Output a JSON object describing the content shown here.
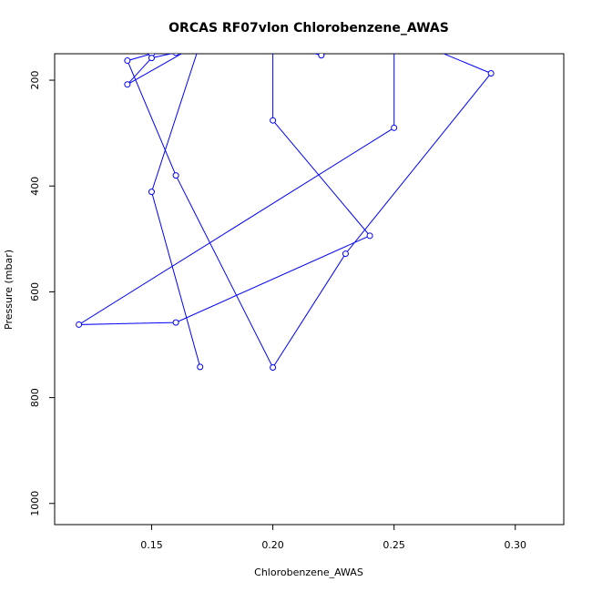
{
  "chart_data": {
    "type": "line",
    "title": "ORCAS RF07vlon Chlorobenzene_AWAS",
    "xlabel": "Chlorobenzene_AWAS",
    "ylabel": "Pressure (mbar)",
    "xlim": [
      0.11,
      0.32
    ],
    "ylim": [
      1040,
      150
    ],
    "y_reversed": true,
    "x_ticks": [
      0.15,
      0.2,
      0.25,
      0.3
    ],
    "x_tick_labels": [
      "0.15",
      "0.20",
      "0.25",
      "0.30"
    ],
    "y_ticks": [
      200,
      400,
      600,
      800,
      1000
    ],
    "y_tick_labels": [
      "200",
      "400",
      "600",
      "800",
      "1000"
    ],
    "grid": false,
    "legend": "none",
    "series": [
      {
        "color": "#0000ff",
        "marker": "open-circle",
        "points": [
          {
            "x": 0.22,
            "y": 152
          },
          {
            "x": 0.22,
            "y": 153
          },
          {
            "x": 0.2,
            "y": 130
          },
          {
            "x": 0.2,
            "y": 276
          },
          {
            "x": 0.24,
            "y": 494
          },
          {
            "x": 0.16,
            "y": 658
          },
          {
            "x": 0.12,
            "y": 662
          },
          {
            "x": 0.25,
            "y": 290
          },
          {
            "x": 0.25,
            "y": 130
          },
          {
            "x": 0.26,
            "y": 130
          },
          {
            "x": 0.29,
            "y": 187
          },
          {
            "x": 0.23,
            "y": 528
          },
          {
            "x": 0.2,
            "y": 743
          },
          {
            "x": 0.16,
            "y": 380
          },
          {
            "x": 0.14,
            "y": 163
          },
          {
            "x": 0.15,
            "y": 150
          },
          {
            "x": 0.16,
            "y": 148
          },
          {
            "x": 0.15,
            "y": 158
          },
          {
            "x": 0.14,
            "y": 208
          },
          {
            "x": 0.17,
            "y": 130
          },
          {
            "x": 0.15,
            "y": 411
          },
          {
            "x": 0.17,
            "y": 742
          }
        ]
      }
    ]
  }
}
